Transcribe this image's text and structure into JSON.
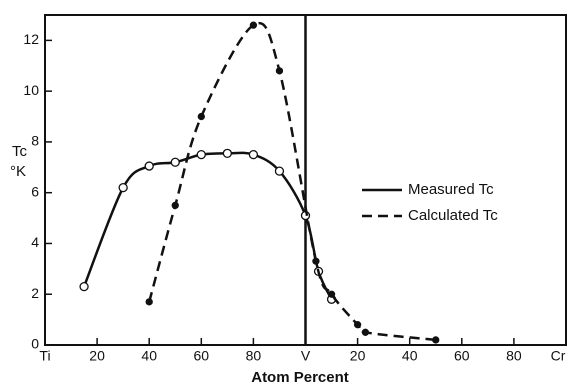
{
  "chart_data": {
    "type": "line",
    "x_label": "Atom Percent",
    "y_label": [
      "Tc",
      "°K"
    ],
    "xlim": [
      0,
      200
    ],
    "ylim": [
      0,
      13
    ],
    "xticks": [
      {
        "value": 0,
        "label": "Ti"
      },
      20,
      40,
      60,
      80,
      {
        "value": 100,
        "label": "V"
      },
      {
        "value": 120,
        "label": "20"
      },
      {
        "value": 140,
        "label": "40"
      },
      {
        "value": 160,
        "label": "60"
      },
      {
        "value": 180,
        "label": "80"
      },
      {
        "value": 200,
        "label": "Cr"
      }
    ],
    "yticks": [
      0,
      2,
      4,
      6,
      8,
      10,
      12
    ],
    "legend": "right",
    "series": [
      {
        "name": "Measured Tc",
        "color": "#111",
        "style": "solid",
        "marker": "open",
        "x": [
          15,
          30,
          40,
          50,
          60,
          70,
          80,
          90,
          100,
          105,
          110
        ],
        "values": [
          2.3,
          6.2,
          7.05,
          7.2,
          7.5,
          7.55,
          7.5,
          6.85,
          5.1,
          2.9,
          1.8
        ]
      },
      {
        "name": "Calculated Tc",
        "color": "#111",
        "style": "dashed",
        "marker": "filled",
        "x": [
          40,
          50,
          60,
          80,
          90,
          104,
          110,
          120,
          123,
          150
        ],
        "values": [
          1.7,
          5.5,
          9,
          12.6,
          10.8,
          3.3,
          2.0,
          0.8,
          0.5,
          0.2
        ]
      }
    ]
  }
}
